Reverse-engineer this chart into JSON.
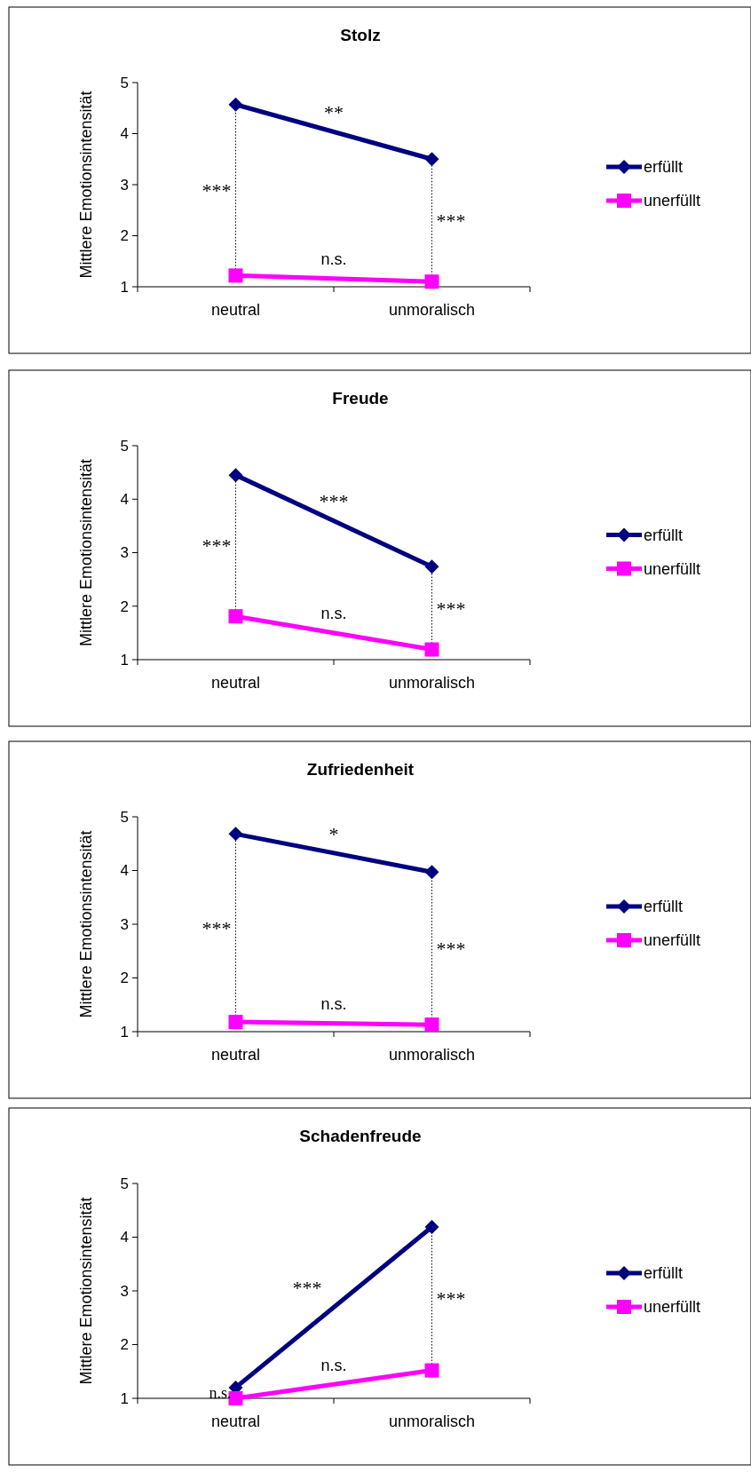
{
  "chart_data": [
    {
      "type": "line",
      "title": "Stolz",
      "ylabel": "Mittlere Emotionsintensität",
      "categories": [
        "neutral",
        "unmoralisch"
      ],
      "ylim": [
        1,
        5
      ],
      "yticks": [
        1,
        2,
        3,
        4,
        5
      ],
      "legend": "right",
      "line_style": "solid",
      "series": [
        {
          "name": "erfüllt",
          "color": "#000080",
          "marker": "diamond",
          "values": [
            4.57,
            3.5
          ]
        },
        {
          "name": "unerfüllt",
          "color": "#ff00ff",
          "marker": "square",
          "values": [
            1.22,
            1.1
          ]
        }
      ],
      "annotations": [
        "***",
        "**",
        "***",
        "n.s."
      ]
    },
    {
      "type": "line",
      "title": "Freude",
      "ylabel": "Mittlere Emotionsintensität",
      "categories": [
        "neutral",
        "unmoralisch"
      ],
      "ylim": [
        1,
        5
      ],
      "yticks": [
        1,
        2,
        3,
        4,
        5
      ],
      "legend": "right",
      "line_style": "solid",
      "series": [
        {
          "name": "erfüllt",
          "color": "#000080",
          "marker": "diamond",
          "values": [
            4.45,
            2.74
          ]
        },
        {
          "name": "unerfüllt",
          "color": "#ff00ff",
          "marker": "square",
          "values": [
            1.81,
            1.19
          ]
        }
      ],
      "annotations": [
        "***",
        "***",
        "***",
        "n.s."
      ]
    },
    {
      "type": "line",
      "title": "Zufriedenheit",
      "ylabel": "Mittlere Emotionsintensität",
      "categories": [
        "neutral",
        "unmoralisch"
      ],
      "ylim": [
        1,
        5
      ],
      "yticks": [
        1,
        2,
        3,
        4,
        5
      ],
      "legend": "right",
      "line_style": "solid",
      "series": [
        {
          "name": "erfüllt",
          "color": "#000080",
          "marker": "diamond",
          "values": [
            4.68,
            3.97
          ]
        },
        {
          "name": "unerfüllt",
          "color": "#ff00ff",
          "marker": "square",
          "values": [
            1.18,
            1.13
          ]
        }
      ],
      "annotations": [
        "***",
        "*",
        "***",
        "n.s."
      ]
    },
    {
      "type": "line",
      "title": "Schadenfreude",
      "ylabel": "Mittlere Emotionsintensität",
      "categories": [
        "neutral",
        "unmoralisch"
      ],
      "ylim": [
        1,
        5
      ],
      "yticks": [
        1,
        2,
        3,
        4,
        5
      ],
      "legend": "right",
      "line_style": "solid",
      "series": [
        {
          "name": "erfüllt",
          "color": "#000080",
          "marker": "diamond",
          "values": [
            1.2,
            4.19
          ]
        },
        {
          "name": "unerfüllt",
          "color": "#ff00ff",
          "marker": "square",
          "values": [
            1.0,
            1.52
          ]
        }
      ],
      "annotations": [
        "n.s.",
        "***",
        "***",
        "n.s."
      ]
    }
  ]
}
